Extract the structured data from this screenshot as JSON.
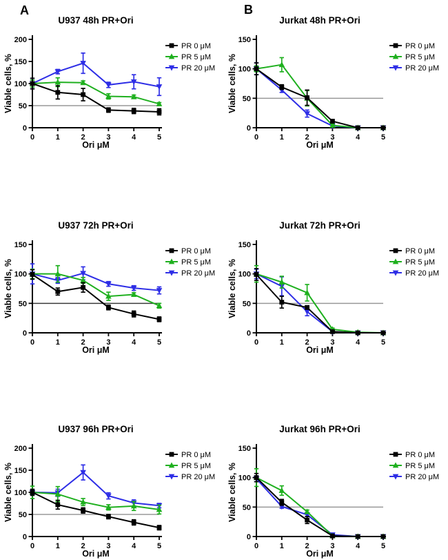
{
  "figure": {
    "panel_labels": [
      "A",
      "B"
    ],
    "background": "#ffffff",
    "axis_color": "#000000"
  },
  "chart_data": [
    {
      "type": "line",
      "title": "U937 48h PR+Ori",
      "xlabel": "Ori μM",
      "ylabel": "Viable cells, %",
      "x": [
        0,
        1,
        2,
        3,
        4,
        5
      ],
      "xlim": [
        0,
        5
      ],
      "ylim": [
        0,
        200
      ],
      "xticks": [
        0,
        1,
        2,
        3,
        4,
        5
      ],
      "yticks": [
        0,
        50,
        100,
        150,
        200
      ],
      "grid": false,
      "legend_position": "right",
      "reference_line": {
        "y": 50,
        "color": "#999999"
      },
      "series": [
        {
          "name": "PR 0 μM",
          "marker": "square",
          "color": "#000000",
          "values": [
            100,
            80,
            75,
            40,
            38,
            36
          ],
          "errors": [
            12,
            15,
            14,
            5,
            6,
            7
          ]
        },
        {
          "name": "PR 5 μM",
          "marker": "triangle-up",
          "color": "#1FB01F",
          "values": [
            100,
            103,
            102,
            71,
            70,
            54
          ],
          "errors": [
            8,
            10,
            4,
            6,
            4,
            3
          ]
        },
        {
          "name": "PR 20 μM",
          "marker": "triangle-down",
          "color": "#2E2EE6",
          "values": [
            100,
            127,
            146,
            97,
            104,
            93
          ],
          "errors": [
            12,
            5,
            23,
            6,
            16,
            20
          ]
        }
      ]
    },
    {
      "type": "line",
      "title": "Jurkat 48h PR+Ori",
      "xlabel": "Ori μM",
      "ylabel": "Viable cells, %",
      "x": [
        0,
        1,
        2,
        3,
        4,
        5
      ],
      "xlim": [
        0,
        5
      ],
      "ylim": [
        0,
        150
      ],
      "xticks": [
        0,
        1,
        2,
        3,
        4,
        5
      ],
      "yticks": [
        0,
        50,
        100,
        150
      ],
      "grid": false,
      "legend_position": "right",
      "reference_line": {
        "y": 50,
        "color": "#999999"
      },
      "series": [
        {
          "name": "PR 0 μM",
          "marker": "square",
          "color": "#000000",
          "values": [
            100,
            69,
            51,
            11,
            0,
            0
          ],
          "errors": [
            10,
            4,
            13,
            3,
            0,
            0
          ]
        },
        {
          "name": "PR 5 μM",
          "marker": "triangle-up",
          "color": "#1FB01F",
          "values": [
            100,
            107,
            50,
            4,
            0,
            0
          ],
          "errors": [
            5,
            12,
            13,
            2,
            0,
            0
          ]
        },
        {
          "name": "PR 20 μM",
          "marker": "triangle-down",
          "color": "#2E2EE6",
          "values": [
            100,
            64,
            24,
            3,
            0,
            0
          ],
          "errors": [
            10,
            4,
            6,
            2,
            0,
            0
          ]
        }
      ]
    },
    {
      "type": "line",
      "title": "U937 72h PR+Ori",
      "xlabel": "Ori μM",
      "ylabel": "Viable cells, %",
      "x": [
        0,
        1,
        2,
        3,
        4,
        5
      ],
      "xlim": [
        0,
        5
      ],
      "ylim": [
        0,
        150
      ],
      "xticks": [
        0,
        1,
        2,
        3,
        4,
        5
      ],
      "yticks": [
        0,
        50,
        100,
        150
      ],
      "grid": false,
      "legend_position": "right",
      "reference_line": {
        "y": 50,
        "color": "#3a3a3a"
      },
      "series": [
        {
          "name": "PR 0 μM",
          "marker": "square",
          "color": "#000000",
          "values": [
            99,
            70,
            77,
            43,
            32,
            23
          ],
          "errors": [
            8,
            6,
            8,
            4,
            5,
            4
          ]
        },
        {
          "name": "PR 5 μM",
          "marker": "triangle-up",
          "color": "#1FB01F",
          "values": [
            100,
            100,
            89,
            62,
            65,
            46
          ],
          "errors": [
            8,
            14,
            5,
            7,
            3,
            4
          ]
        },
        {
          "name": "PR 20 μM",
          "marker": "triangle-down",
          "color": "#2E2EE6",
          "values": [
            100,
            89,
            101,
            83,
            76,
            72
          ],
          "errors": [
            17,
            5,
            11,
            4,
            4,
            6
          ]
        }
      ]
    },
    {
      "type": "line",
      "title": "Jurkat 72h PR+Ori",
      "xlabel": "Ori μM",
      "ylabel": "Viable cells, %",
      "x": [
        0,
        1,
        2,
        3,
        4,
        5
      ],
      "xlim": [
        0,
        5
      ],
      "ylim": [
        0,
        150
      ],
      "xticks": [
        0,
        1,
        2,
        3,
        4,
        5
      ],
      "yticks": [
        0,
        50,
        100,
        150
      ],
      "grid": false,
      "legend_position": "right",
      "reference_line": {
        "y": 50,
        "color": "#999999"
      },
      "series": [
        {
          "name": "PR 0 μM",
          "marker": "square",
          "color": "#000000",
          "values": [
            99,
            52,
            43,
            2,
            0,
            0
          ],
          "errors": [
            10,
            10,
            3,
            2,
            0,
            0
          ]
        },
        {
          "name": "PR 5 μM",
          "marker": "triangle-up",
          "color": "#1FB01F",
          "values": [
            100,
            86,
            68,
            6,
            1,
            0
          ],
          "errors": [
            14,
            10,
            14,
            2,
            0,
            0
          ]
        },
        {
          "name": "PR 20 μM",
          "marker": "triangle-down",
          "color": "#2E2EE6",
          "values": [
            100,
            79,
            36,
            2,
            0,
            0
          ],
          "errors": [
            8,
            16,
            7,
            1,
            0,
            0
          ]
        }
      ]
    },
    {
      "type": "line",
      "title": "U937 96h PR+Ori",
      "xlabel": "Ori μM",
      "ylabel": "Viable cells, %",
      "x": [
        0,
        1,
        2,
        3,
        4,
        5
      ],
      "xlim": [
        0,
        5
      ],
      "ylim": [
        0,
        200
      ],
      "xticks": [
        0,
        1,
        2,
        3,
        4,
        5
      ],
      "yticks": [
        0,
        50,
        100,
        150,
        200
      ],
      "grid": false,
      "legend_position": "right",
      "reference_line": {
        "y": 50,
        "color": "#999999"
      },
      "series": [
        {
          "name": "PR 0 μM",
          "marker": "square",
          "color": "#000000",
          "values": [
            100,
            72,
            59,
            45,
            32,
            20
          ],
          "errors": [
            7,
            10,
            6,
            5,
            6,
            5
          ]
        },
        {
          "name": "PR 5 μM",
          "marker": "triangle-up",
          "color": "#1FB01F",
          "values": [
            100,
            96,
            78,
            66,
            69,
            61
          ],
          "errors": [
            14,
            17,
            8,
            6,
            10,
            10
          ]
        },
        {
          "name": "PR 20 μM",
          "marker": "triangle-down",
          "color": "#2E2EE6",
          "values": [
            100,
            99,
            145,
            92,
            76,
            70
          ],
          "errors": [
            5,
            8,
            17,
            7,
            7,
            5
          ]
        }
      ]
    },
    {
      "type": "line",
      "title": "Jurkat 96h PR+Ori",
      "xlabel": "Ori μM",
      "ylabel": "Viable cells, %",
      "x": [
        0,
        1,
        2,
        3,
        4,
        5
      ],
      "xlim": [
        0,
        5
      ],
      "ylim": [
        0,
        150
      ],
      "xticks": [
        0,
        1,
        2,
        3,
        4,
        5
      ],
      "yticks": [
        0,
        50,
        100,
        150
      ],
      "grid": false,
      "legend_position": "right",
      "reference_line": {
        "y": 50,
        "color": "#999999"
      },
      "series": [
        {
          "name": "PR 0 μM",
          "marker": "square",
          "color": "#000000",
          "values": [
            100,
            58,
            28,
            1,
            0,
            0
          ],
          "errors": [
            7,
            5,
            6,
            1,
            0,
            0
          ]
        },
        {
          "name": "PR 5 μM",
          "marker": "triangle-up",
          "color": "#1FB01F",
          "values": [
            100,
            78,
            42,
            1,
            0,
            0
          ],
          "errors": [
            15,
            8,
            3,
            1,
            0,
            0
          ]
        },
        {
          "name": "PR 20 μM",
          "marker": "triangle-down",
          "color": "#2E2EE6",
          "values": [
            98,
            51,
            37,
            3,
            0,
            0
          ],
          "errors": [
            5,
            3,
            3,
            1,
            0,
            0
          ]
        }
      ]
    }
  ]
}
